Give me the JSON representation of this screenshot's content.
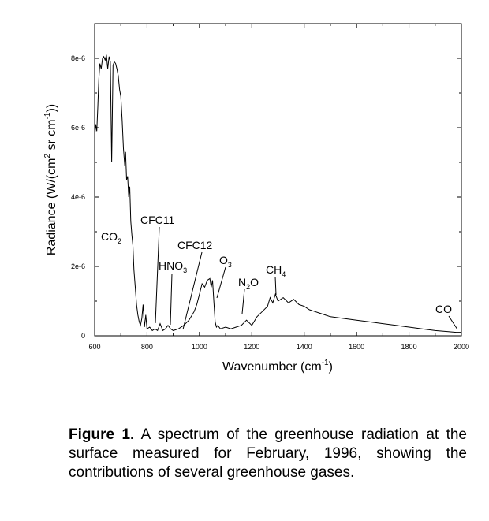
{
  "chart_data": {
    "type": "line",
    "title": "",
    "xlabel": "Wavenumber (cm",
    "xlabel_sup": "-1",
    "xlabel_close": ")",
    "ylabel_main": "Radiance (W/(cm",
    "ylabel_sup1": "2",
    "ylabel_mid": " sr cm",
    "ylabel_sup2": "-1",
    "ylabel_close": "))",
    "xlim": [
      600,
      2000
    ],
    "ylim": [
      0,
      9e-06
    ],
    "x_ticks": [
      600,
      800,
      1000,
      1200,
      1400,
      1600,
      1800,
      2000
    ],
    "x_tick_labels": [
      "600",
      "800",
      "1000",
      "1200",
      "1400",
      "1600",
      "1800",
      "2000"
    ],
    "y_ticks": [
      0,
      2e-06,
      4e-06,
      6e-06,
      8e-06
    ],
    "y_tick_labels": [
      "0",
      "2e-6",
      "4e-6",
      "6e-6",
      "8e-6"
    ],
    "grid": false,
    "legend": "none",
    "line_color": "#000000",
    "series": [
      {
        "x": [
          600,
          604,
          608,
          612,
          616,
          620,
          625,
          630,
          635,
          640,
          645,
          650,
          655,
          660,
          665,
          670,
          675,
          680,
          685,
          690,
          695,
          700,
          705,
          710,
          715,
          718,
          722,
          726,
          730,
          734,
          738,
          742,
          746,
          750,
          755,
          760,
          765,
          770,
          775,
          780,
          785,
          790,
          795,
          800,
          810,
          820,
          830,
          840,
          850,
          860,
          870,
          880,
          890,
          900,
          920,
          940,
          960,
          980,
          990,
          1000,
          1010,
          1020,
          1030,
          1040,
          1045,
          1050,
          1055,
          1060,
          1065,
          1070,
          1080,
          1100,
          1120,
          1140,
          1160,
          1180,
          1200,
          1220,
          1240,
          1260,
          1270,
          1280,
          1290,
          1300,
          1320,
          1340,
          1360,
          1380,
          1400,
          1420,
          1440,
          1460,
          1480,
          1500,
          1550,
          1600,
          1650,
          1700,
          1750,
          1800,
          1850,
          1900,
          1950,
          1980,
          2000
        ],
        "y": [
          5.7e-06,
          6.1e-06,
          5.9e-06,
          6.6e-06,
          7.4e-06,
          7.85e-06,
          7.7e-06,
          8e-06,
          8.05e-06,
          7.95e-06,
          8.1e-06,
          7.7e-06,
          8.05e-06,
          7.9e-06,
          5e-06,
          7.8e-06,
          7.9e-06,
          7.85e-06,
          7.7e-06,
          7.5e-06,
          7.1e-06,
          6.9e-06,
          6.2e-06,
          5.4e-06,
          4.9e-06,
          5.3e-06,
          4.5e-06,
          4.6e-06,
          4e-06,
          4.3e-06,
          3.3e-06,
          2.9e-06,
          2.6e-06,
          1.9e-06,
          1.4e-06,
          9e-07,
          6e-07,
          4e-07,
          3e-07,
          5e-07,
          9e-07,
          2.5e-07,
          6e-07,
          2e-07,
          2.5e-07,
          1.5e-07,
          2e-07,
          1.5e-07,
          3.5e-07,
          1.5e-07,
          2e-07,
          3e-07,
          2e-07,
          1.5e-07,
          2e-07,
          3e-07,
          4.5e-07,
          7e-07,
          9e-07,
          1.2e-06,
          1.5e-06,
          1.4e-06,
          1.6e-06,
          1.65e-06,
          1.4e-06,
          1.6e-06,
          1e-06,
          4e-07,
          2.5e-07,
          3e-07,
          2e-07,
          2.5e-07,
          2e-07,
          2.5e-07,
          3e-07,
          4.5e-07,
          3e-07,
          5.5e-07,
          7e-07,
          8.5e-07,
          1.1e-06,
          9.5e-07,
          1.2e-06,
          1e-06,
          1.1e-06,
          9.5e-07,
          1.05e-06,
          9e-07,
          8.5e-07,
          7.5e-07,
          7e-07,
          6.5e-07,
          6e-07,
          5.5e-07,
          5e-07,
          4.5e-07,
          4e-07,
          3.5e-07,
          3e-07,
          2.5e-07,
          2e-07,
          1.5e-07,
          1.2e-07,
          1e-07,
          1e-07
        ]
      }
    ],
    "annotations": [
      {
        "main": "CO",
        "sub": "2",
        "after": ""
      },
      {
        "main": "CFC11",
        "sub": "",
        "after": ""
      },
      {
        "main": "HNO",
        "sub": "3",
        "after": ""
      },
      {
        "main": "CFC12",
        "sub": "",
        "after": ""
      },
      {
        "main": "O",
        "sub": "3",
        "after": ""
      },
      {
        "main": "N",
        "sub": "2",
        "after": "O"
      },
      {
        "main": "CH",
        "sub": "4",
        "after": ""
      },
      {
        "main": "CO",
        "sub": "",
        "after": ""
      }
    ]
  },
  "caption": {
    "label": "Figure 1.",
    "text": "  A spectrum of the greenhouse radiation at the surface measured for February, 1996, showing the contributions of several greenhouse gases."
  }
}
